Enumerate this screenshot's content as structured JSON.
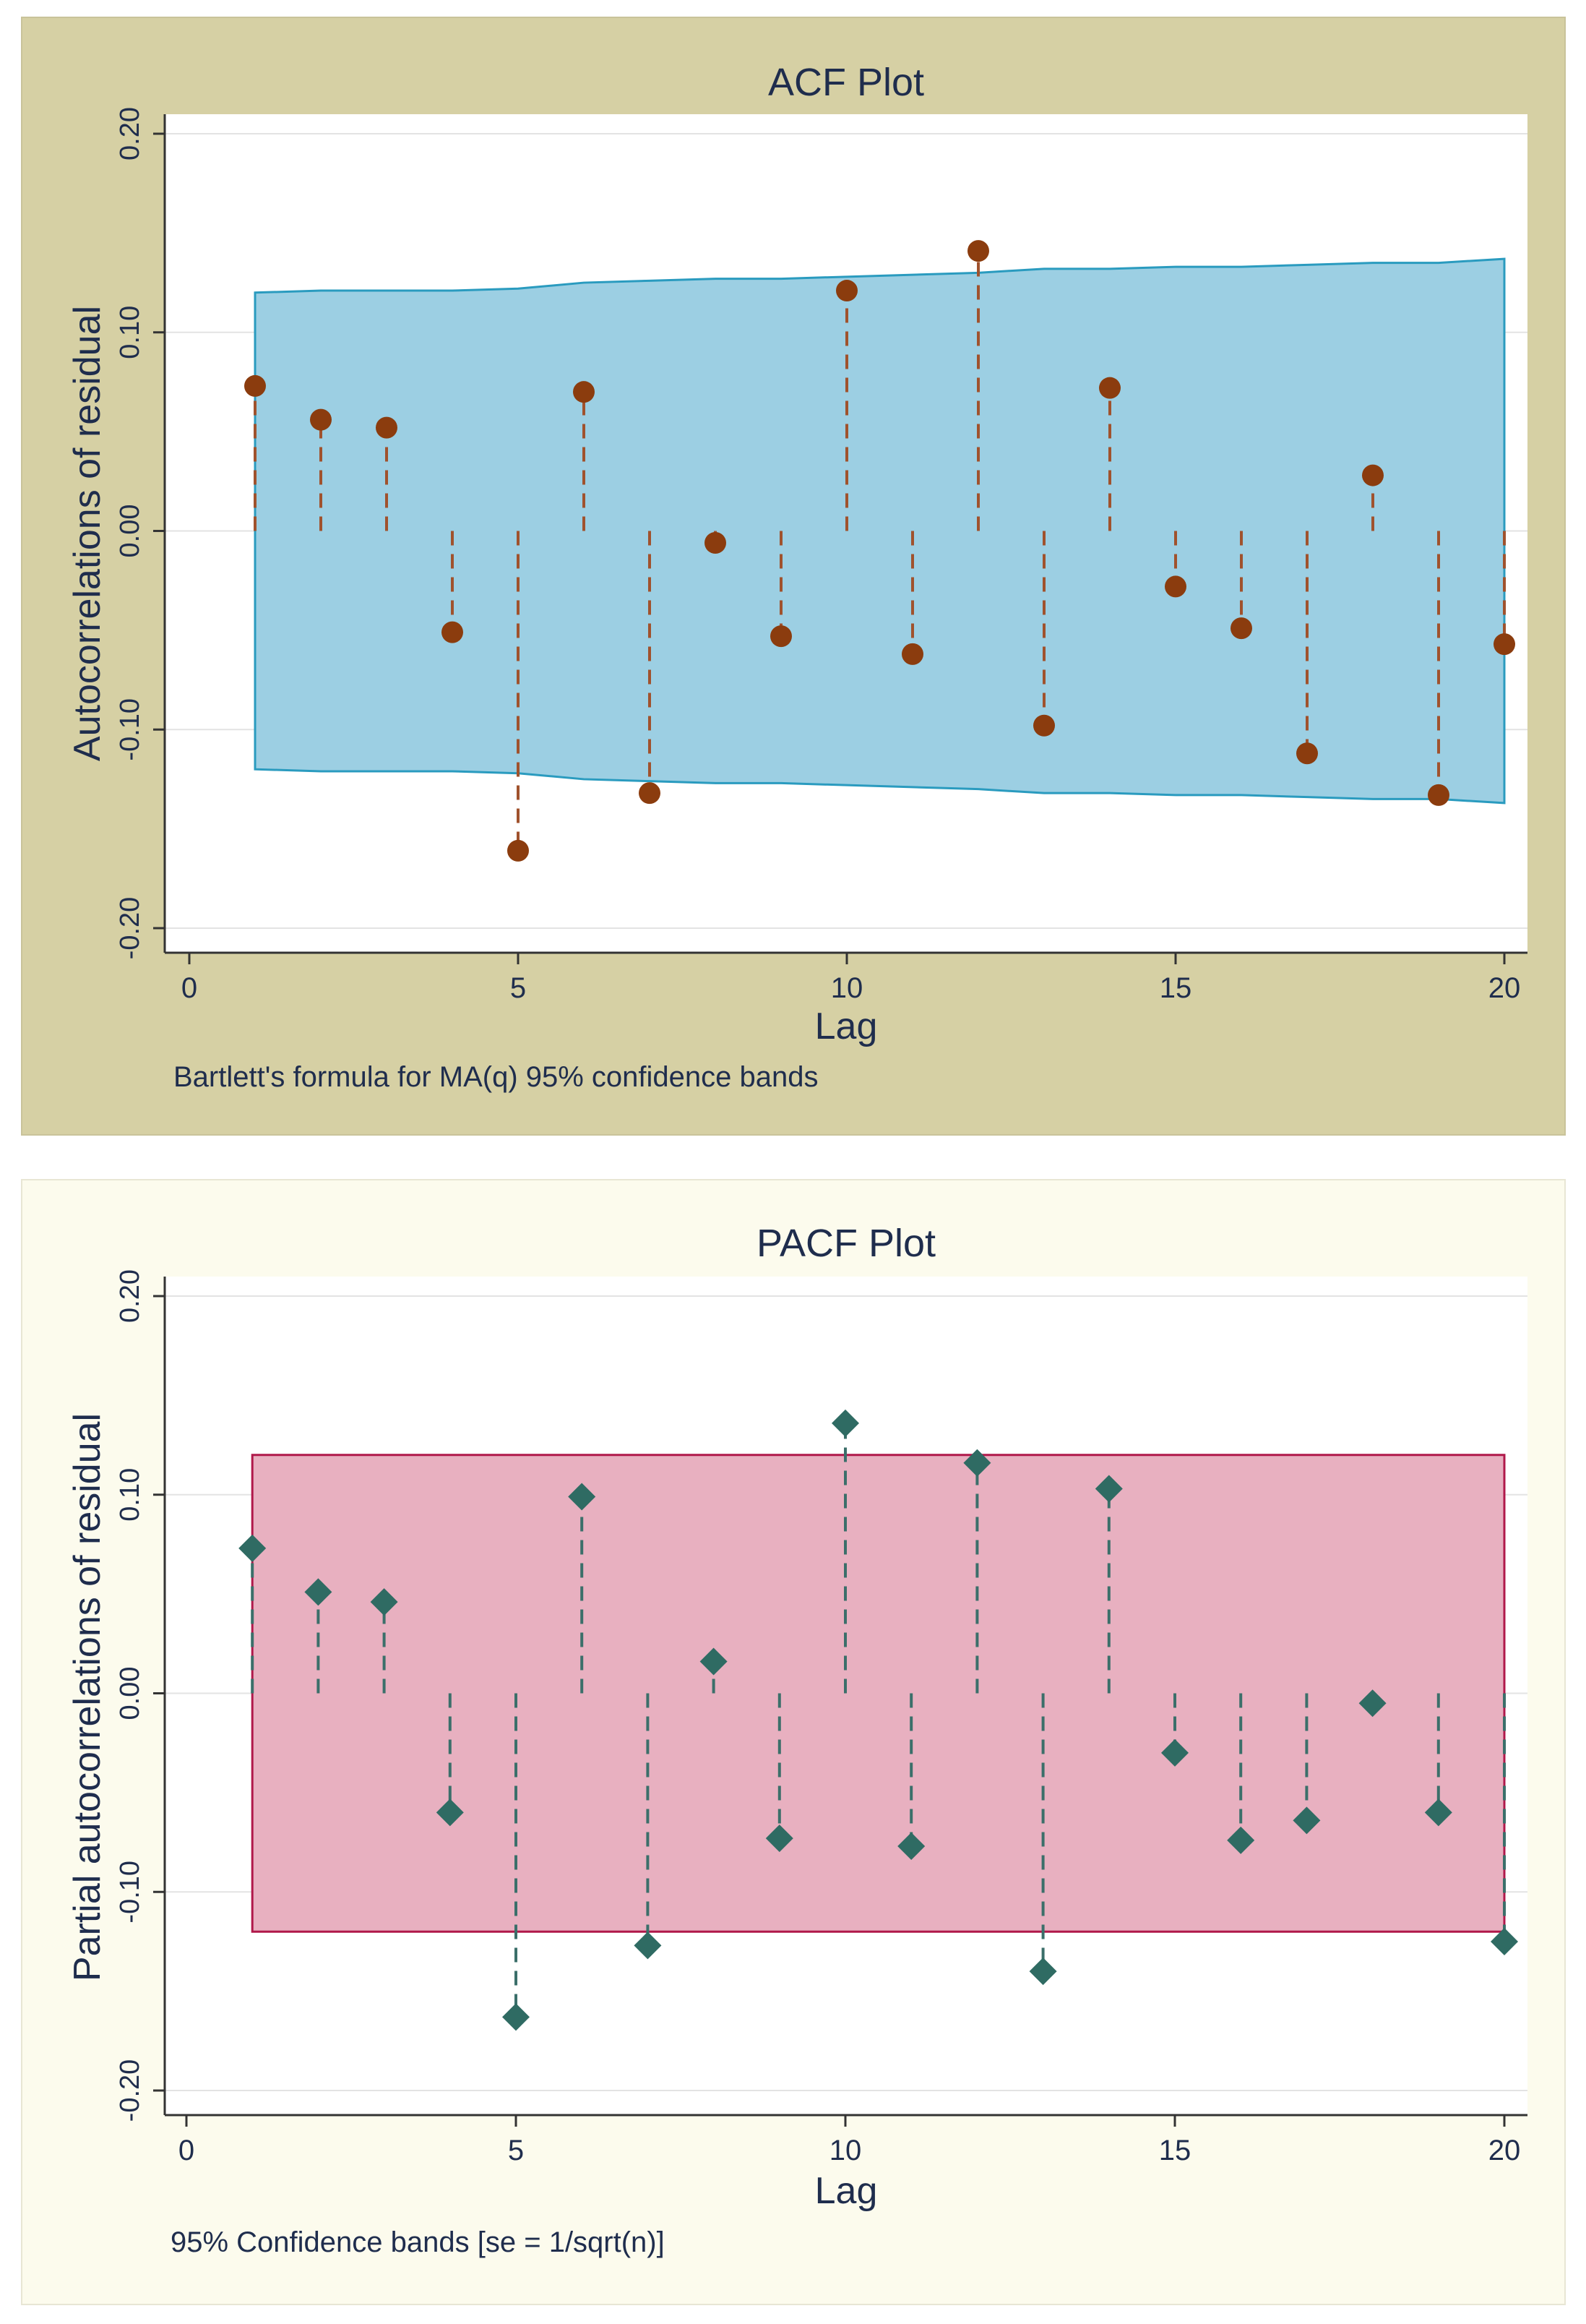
{
  "chart_data": [
    {
      "id": "acf",
      "type": "scatter",
      "title": "ACF Plot",
      "xlabel": "Lag",
      "ylabel": "Autocorrelations of residual",
      "note": "Bartlett's formula for MA(q) 95% confidence bands",
      "xlim": [
        0,
        20
      ],
      "ylim": [
        -0.2,
        0.2
      ],
      "xticks": [
        0,
        5,
        10,
        15,
        20
      ],
      "yticks": [
        -0.2,
        -0.1,
        0.0,
        0.1,
        0.2
      ],
      "ytick_labels": [
        "-0.20",
        "-0.10",
        "0.00",
        "0.10",
        "0.20"
      ],
      "lags": [
        1,
        2,
        3,
        4,
        5,
        6,
        7,
        8,
        9,
        10,
        11,
        12,
        13,
        14,
        15,
        16,
        17,
        18,
        19,
        20
      ],
      "values": [
        0.073,
        0.056,
        0.052,
        -0.051,
        -0.161,
        0.07,
        -0.132,
        -0.006,
        -0.053,
        0.121,
        -0.062,
        0.141,
        -0.098,
        0.072,
        -0.028,
        -0.049,
        -0.112,
        0.028,
        -0.133,
        -0.057
      ],
      "band_upper": [
        0.12,
        0.121,
        0.121,
        0.121,
        0.122,
        0.125,
        0.126,
        0.127,
        0.127,
        0.128,
        0.129,
        0.13,
        0.132,
        0.132,
        0.133,
        0.133,
        0.134,
        0.135,
        0.135,
        0.137
      ],
      "colors": {
        "panel_bg": "#d6d0a4",
        "plot_bg": "#ffffff",
        "band_fill": "#9ccfe3",
        "band_stroke": "#2a9bbf",
        "marker": "#8b3c0e",
        "spike": "#a0522d",
        "text": "#1f2d4d",
        "grid": "#e3e3e3"
      }
    },
    {
      "id": "pacf",
      "type": "scatter",
      "title": "PACF Plot",
      "xlabel": "Lag",
      "ylabel": "Partial autocorrelations of residual",
      "note": "95% Confidence bands [se = 1/sqrt(n)]",
      "xlim": [
        0,
        20
      ],
      "ylim": [
        -0.2,
        0.2
      ],
      "xticks": [
        0,
        5,
        10,
        15,
        20
      ],
      "yticks": [
        -0.2,
        -0.1,
        0.0,
        0.1,
        0.2
      ],
      "ytick_labels": [
        "-0.20",
        "-0.10",
        "0.00",
        "0.10",
        "0.20"
      ],
      "lags": [
        1,
        2,
        3,
        4,
        5,
        6,
        7,
        8,
        9,
        10,
        11,
        12,
        13,
        14,
        15,
        16,
        17,
        18,
        19,
        20
      ],
      "values": [
        0.073,
        0.051,
        0.046,
        -0.06,
        -0.163,
        0.099,
        -0.127,
        0.016,
        -0.073,
        0.136,
        -0.077,
        0.116,
        -0.14,
        0.103,
        -0.03,
        -0.074,
        -0.064,
        -0.005,
        -0.06,
        -0.125
      ],
      "band_upper": [
        0.12,
        0.12,
        0.12,
        0.12,
        0.12,
        0.12,
        0.12,
        0.12,
        0.12,
        0.12,
        0.12,
        0.12,
        0.12,
        0.12,
        0.12,
        0.12,
        0.12,
        0.12,
        0.12,
        0.12
      ],
      "colors": {
        "panel_bg": "#fcfbed",
        "plot_bg": "#ffffff",
        "band_fill": "#e8b0c0",
        "band_stroke": "#b0184a",
        "marker": "#2f6b63",
        "spike": "#3b6f6a",
        "text": "#1f2d4d",
        "grid": "#e3e3e3"
      }
    }
  ]
}
